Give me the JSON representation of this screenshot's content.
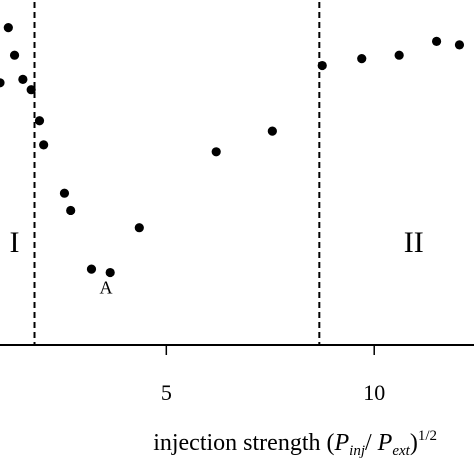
{
  "chart_data": {
    "type": "scatter",
    "xlabel": {
      "main": "injection strength (",
      "p1": "P",
      "sub1": "inj",
      "slash": "/ ",
      "p2": "P",
      "sub2": "ext",
      "close": ")",
      "power": "1/2"
    },
    "ylabel": "",
    "xlim": [
      1.0,
      12.4
    ],
    "ylim": [
      0.0,
      1.0
    ],
    "x_ticks": [
      {
        "value": 5,
        "label": "5"
      },
      {
        "value": 10,
        "label": "10"
      }
    ],
    "boundaries": [
      1.83,
      8.68
    ],
    "region_labels": [
      {
        "label": "I",
        "x": 1.35,
        "y": 0.27
      },
      {
        "label": "II",
        "x": 10.95,
        "y": 0.27
      }
    ],
    "annotations": [
      {
        "label": "A",
        "x": 3.55,
        "y": 0.15
      }
    ],
    "points": [
      {
        "x": 1.0,
        "y": 0.76
      },
      {
        "x": 1.2,
        "y": 0.92
      },
      {
        "x": 1.35,
        "y": 0.84
      },
      {
        "x": 1.55,
        "y": 0.77
      },
      {
        "x": 1.75,
        "y": 0.74
      },
      {
        "x": 1.95,
        "y": 0.65
      },
      {
        "x": 2.05,
        "y": 0.58
      },
      {
        "x": 2.55,
        "y": 0.44
      },
      {
        "x": 2.7,
        "y": 0.39
      },
      {
        "x": 3.2,
        "y": 0.22
      },
      {
        "x": 3.65,
        "y": 0.21
      },
      {
        "x": 4.35,
        "y": 0.34
      },
      {
        "x": 6.2,
        "y": 0.56
      },
      {
        "x": 7.55,
        "y": 0.62
      },
      {
        "x": 8.75,
        "y": 0.81
      },
      {
        "x": 9.7,
        "y": 0.83
      },
      {
        "x": 10.6,
        "y": 0.84
      },
      {
        "x": 11.5,
        "y": 0.88
      },
      {
        "x": 12.05,
        "y": 0.87
      }
    ]
  }
}
